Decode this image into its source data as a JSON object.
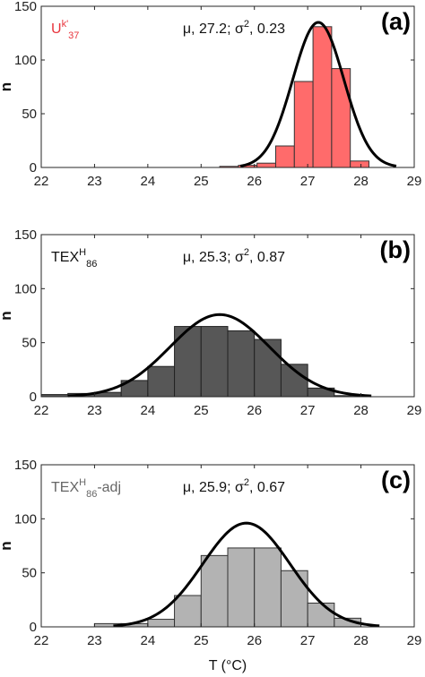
{
  "chart_data": [
    {
      "type": "histogram",
      "panel_label": "(a)",
      "proxy": {
        "main": "U",
        "sup": "k'",
        "sub": "37",
        "suffix": ""
      },
      "stats": {
        "mu_text": "μ, 27.2;",
        "sigma2_sym": "σ",
        "sigma2_sup": "2",
        "sigma2_val": ", 0.23"
      },
      "mu": 27.2,
      "sigma2": 0.23,
      "xlim": [
        22,
        29
      ],
      "ylim": [
        0,
        150
      ],
      "xticks": [
        "22",
        "23",
        "24",
        "25",
        "26",
        "27",
        "28",
        "29"
      ],
      "yticks": [
        "0",
        "50",
        "100",
        "150"
      ],
      "ylabel": "n",
      "bin_width": 0.35,
      "bin_left_edges": [
        25.0,
        25.35,
        25.7,
        26.05,
        26.4,
        26.75,
        27.1,
        27.45,
        27.8,
        28.15
      ],
      "counts": [
        0,
        1,
        2,
        4,
        20,
        80,
        131,
        92,
        6,
        0
      ],
      "fit_peak": 135,
      "colors": {
        "fill": "#ff6b6b",
        "proxy_text": "#e8343c",
        "edge": "#333333",
        "curve": "#000000"
      }
    },
    {
      "type": "histogram",
      "panel_label": "(b)",
      "proxy": {
        "main": "TEX",
        "sup": "H",
        "sub": "86",
        "suffix": ""
      },
      "stats": {
        "mu_text": "μ, 25.3;",
        "sigma2_sym": "σ",
        "sigma2_sup": "2",
        "sigma2_val": ", 0.87"
      },
      "mu": 25.35,
      "sigma2": 0.87,
      "xlim": [
        22,
        29
      ],
      "ylim": [
        0,
        150
      ],
      "xticks": [
        "22",
        "23",
        "24",
        "25",
        "26",
        "27",
        "28",
        "29"
      ],
      "yticks": [
        "0",
        "50",
        "100",
        "150"
      ],
      "ylabel": "n",
      "bin_width": 0.5,
      "bin_left_edges": [
        22.0,
        22.5,
        23.0,
        23.5,
        24.0,
        24.5,
        25.0,
        25.5,
        26.0,
        26.5,
        27.0,
        27.5
      ],
      "counts": [
        2,
        3,
        4,
        15,
        28,
        65,
        65,
        61,
        53,
        30,
        8,
        1
      ],
      "fit_peak": 76,
      "colors": {
        "fill": "#575757",
        "proxy_text": "#111111",
        "edge": "#222222",
        "curve": "#000000"
      }
    },
    {
      "type": "histogram",
      "panel_label": "(c)",
      "proxy": {
        "main": "TEX",
        "sup": "H",
        "sub": "86",
        "suffix": "-adj"
      },
      "stats": {
        "mu_text": "μ, 25.9;",
        "sigma2_sym": "σ",
        "sigma2_sup": "2",
        "sigma2_val": ", 0.67"
      },
      "mu": 25.85,
      "sigma2": 0.67,
      "xlim": [
        22,
        29
      ],
      "ylim": [
        0,
        150
      ],
      "xticks": [
        "22",
        "23",
        "24",
        "25",
        "26",
        "27",
        "28",
        "29"
      ],
      "yticks": [
        "0",
        "50",
        "100",
        "150"
      ],
      "ylabel": "n",
      "xlabel": "T (°C)",
      "bin_width": 0.5,
      "bin_left_edges": [
        23.0,
        23.5,
        24.0,
        24.5,
        25.0,
        25.5,
        26.0,
        26.5,
        27.0,
        27.5
      ],
      "counts": [
        3,
        3,
        7,
        29,
        66,
        73,
        73,
        52,
        22,
        8
      ],
      "fit_peak": 96,
      "colors": {
        "fill": "#b3b3b3",
        "proxy_text": "#666666",
        "edge": "#333333",
        "curve": "#000000"
      }
    }
  ]
}
